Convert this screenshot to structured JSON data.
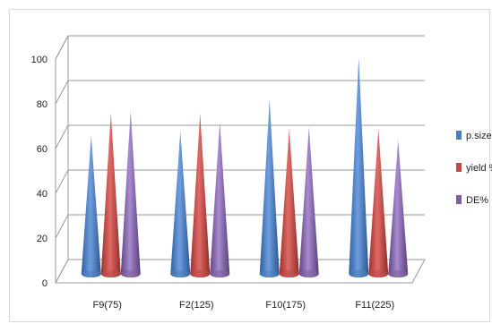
{
  "chart_data": {
    "type": "bar",
    "style": "3d-cone",
    "categories": [
      "F9(75)",
      "F2(125)",
      "F10(175)",
      "F11(225)"
    ],
    "series": [
      {
        "name": "p.size",
        "color": "#4a7ebb",
        "values": [
          61,
          63,
          77,
          96
        ]
      },
      {
        "name": "yield %",
        "color": "#be4b48",
        "values": [
          71,
          71,
          64,
          64
        ]
      },
      {
        "name": "DE%",
        "color": "#7d60a0",
        "values": [
          72,
          67,
          65,
          59
        ]
      }
    ],
    "y_ticks": [
      "0",
      "20",
      "40",
      "60",
      "80",
      "100"
    ],
    "ylim": [
      0,
      100
    ],
    "grid": true,
    "legend_position": "right",
    "title": "",
    "xlabel": "",
    "ylabel": ""
  }
}
